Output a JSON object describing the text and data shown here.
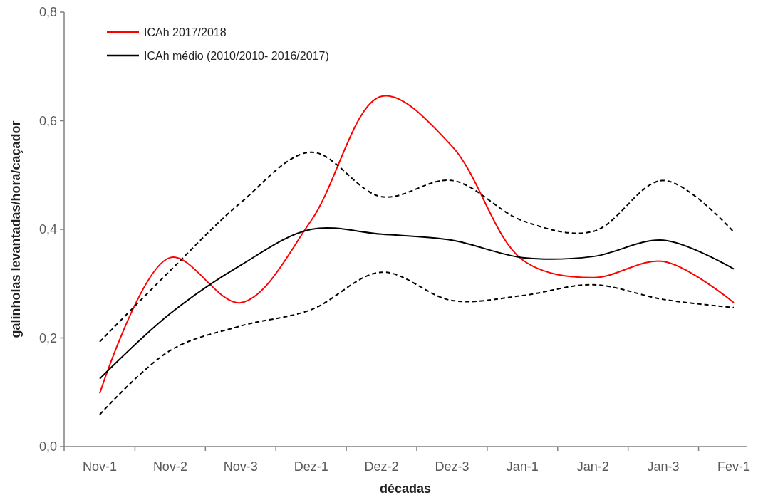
{
  "chart_data": {
    "type": "line",
    "xlabel": "décadas",
    "ylabel": "galinholas levantadas/hora/caçador",
    "categories": [
      "Nov-1",
      "Nov-2",
      "Nov-3",
      "Dez-1",
      "Dez-2",
      "Dez-3",
      "Jan-1",
      "Jan-2",
      "Jan-3",
      "Fev-1"
    ],
    "series": [
      {
        "name": "ICAh 2017/2018",
        "color": "#ff0000",
        "line_style": "solid",
        "values": [
          0.098,
          0.348,
          0.265,
          0.416,
          0.645,
          0.553,
          0.344,
          0.311,
          0.341,
          0.265
        ]
      },
      {
        "name": "ICAh médio (2010/2010- 2016/2017)",
        "color": "#000000",
        "line_style": "solid",
        "values": [
          0.125,
          0.245,
          0.334,
          0.4,
          0.391,
          0.38,
          0.348,
          0.35,
          0.38,
          0.327
        ]
      },
      {
        "color": "#000000",
        "line_style": "dashed",
        "values": [
          0.193,
          0.324,
          0.449,
          0.542,
          0.46,
          0.49,
          0.416,
          0.396,
          0.49,
          0.395
        ]
      },
      {
        "color": "#000000",
        "line_style": "dashed",
        "values": [
          0.059,
          0.177,
          0.222,
          0.252,
          0.321,
          0.269,
          0.278,
          0.298,
          0.271,
          0.256
        ]
      }
    ],
    "ylim": [
      0,
      0.8
    ],
    "yticks": [
      {
        "value": 0,
        "label": "0,0"
      },
      {
        "value": 0.2,
        "label": "0,2"
      },
      {
        "value": 0.4,
        "label": "0,4"
      },
      {
        "value": 0.6,
        "label": "0,6"
      },
      {
        "value": 0.8,
        "label": "0,8"
      }
    ],
    "grid": false,
    "legend": "top left",
    "marker": "none"
  }
}
